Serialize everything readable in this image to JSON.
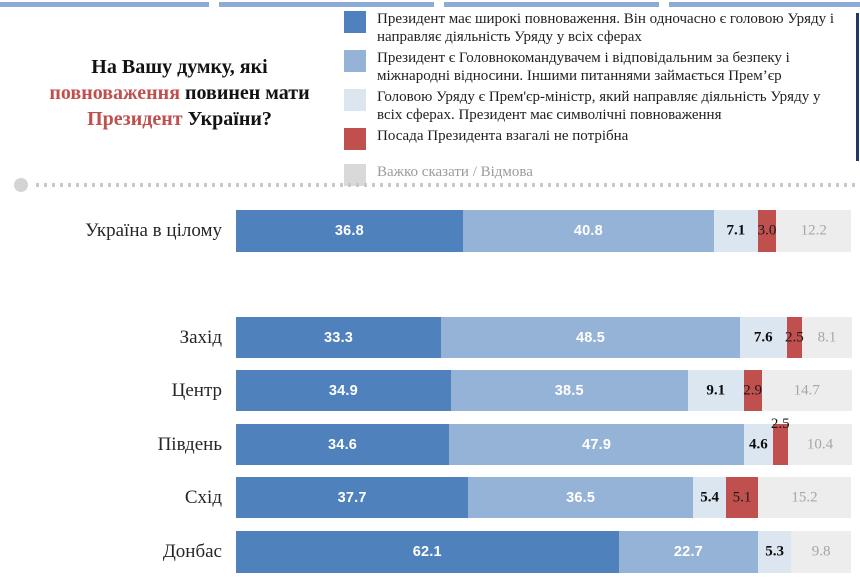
{
  "title": {
    "line1": "На Вашу думку, які",
    "line2_red": "повноваження",
    "line2_black": " повинен мати",
    "line3_red": "Президент",
    "line3_black": " України?"
  },
  "legend": {
    "items": [
      {
        "label": "Президент має широкі повноваження. Він одночасно є головою Уряду і направляє діяльність Уряду у всіх сферах",
        "color": "#4f81bd",
        "muted": false
      },
      {
        "label": "Президент є Головнокомандувачем і відповідальним за безпеку і міжнародні відносини. Іншими питаннями займається Прем’єр",
        "color": "#95b3d7",
        "muted": false
      },
      {
        "label": "Головою Уряду є Прем'єр-міністр, який направляє діяльність Уряду у всіх сферах. Президент має символічні повноваження",
        "color": "#dce6f1",
        "muted": false
      },
      {
        "label": "Посада Президента взагалі не потрібна",
        "color": "#c0504d",
        "muted": false
      },
      {
        "label": "Важко сказати / Відмова",
        "color": "#d9d9d9",
        "muted": true
      }
    ]
  },
  "chart_data": {
    "type": "bar",
    "stacked": true,
    "orientation": "horizontal",
    "unit": "percent",
    "xlim": [
      0,
      100
    ],
    "title": "На Вашу думку, які повноваження повинен мати Президент України?",
    "categories": [
      "Україна в цілому",
      "Захід",
      "Центр",
      "Південь",
      "Схід",
      "Донбас"
    ],
    "series": [
      {
        "name": "Президент має широкі повноваження. Він одночасно є головою Уряду і направляє діяльність Уряду у всіх сферах",
        "color": "#4f81bd",
        "values": [
          36.8,
          33.3,
          34.9,
          34.6,
          37.7,
          62.1
        ]
      },
      {
        "name": "Президент є Головнокомандувачем і відповідальним за безпеку і міжнародні відносини. Іншими питаннями займається Прем’єр",
        "color": "#95b3d7",
        "values": [
          40.8,
          48.5,
          38.5,
          47.9,
          36.5,
          22.7
        ]
      },
      {
        "name": "Головою Уряду є Прем'єр-міністр, який направляє діяльність Уряду у всіх сферах. Президент має символічні повноваження",
        "color": "#dce6f1",
        "values": [
          7.1,
          7.6,
          9.1,
          4.6,
          5.4,
          5.3
        ]
      },
      {
        "name": "Посада Президента взагалі не потрібна",
        "color": "#c0504d",
        "values": [
          3.0,
          2.5,
          2.9,
          2.5,
          5.1,
          0
        ]
      },
      {
        "name": "Важко сказати / Відмова",
        "color": "#ededed",
        "values": [
          12.2,
          8.1,
          14.7,
          10.4,
          15.2,
          9.8
        ]
      }
    ],
    "red_label_above": [
      "Південь"
    ],
    "legend_position": "top-right",
    "grid": false
  }
}
